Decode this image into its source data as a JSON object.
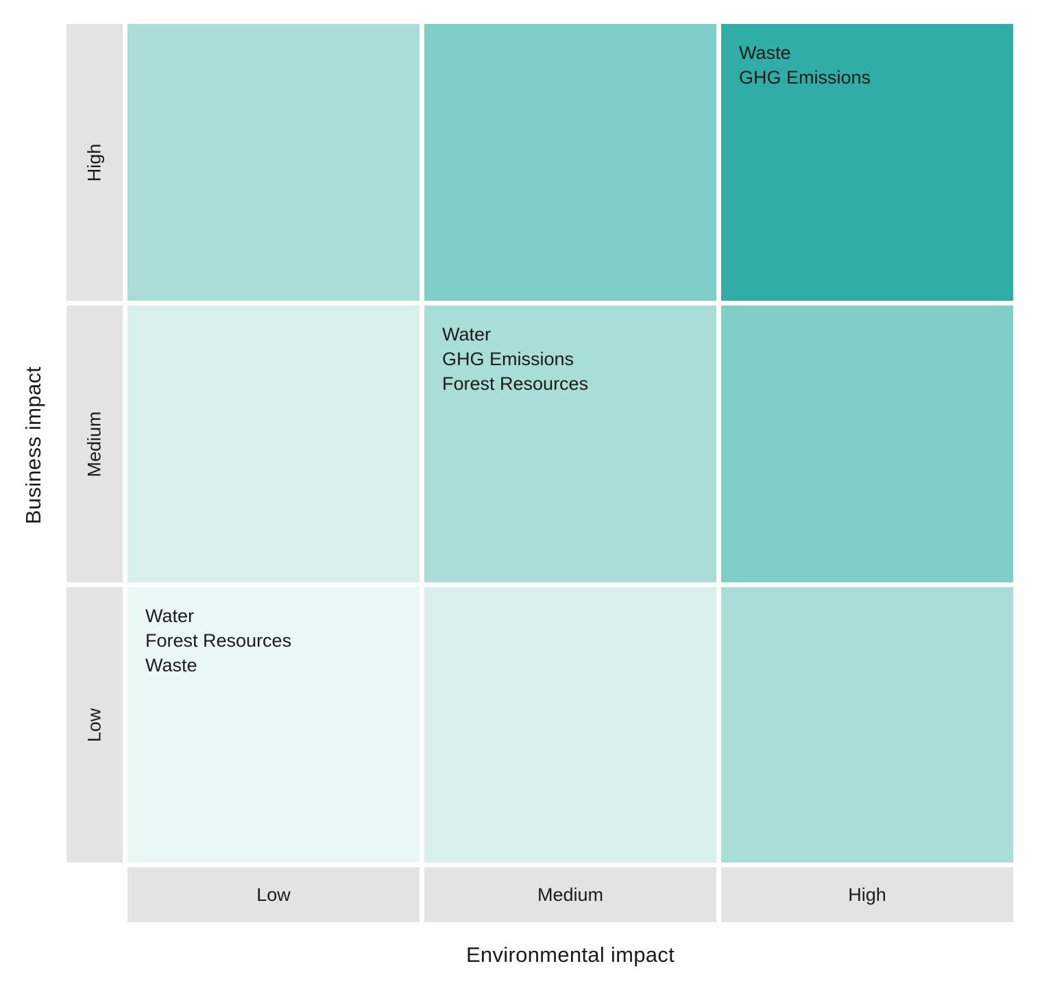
{
  "matrix": {
    "y_axis": {
      "title": "Business impact",
      "levels": [
        "High",
        "Medium",
        "Low"
      ]
    },
    "x_axis": {
      "title": "Environmental impact",
      "levels": [
        "Low",
        "Medium",
        "High"
      ]
    },
    "header_bg": "#e3e3e3",
    "text_color": "#1b1b1b",
    "legend_scale": {
      "very_low": "#ebf7f5",
      "low": "#d8efec",
      "medium": "#a9ded8",
      "high": "#7fcec7",
      "very_high": "#2fada6"
    },
    "cells": [
      {
        "row": "High",
        "col": "Low",
        "color": "#a9ded8",
        "items": []
      },
      {
        "row": "High",
        "col": "Medium",
        "color": "#7fcec7",
        "items": []
      },
      {
        "row": "High",
        "col": "High",
        "color": "#2fada6",
        "items": [
          "Waste",
          "GHG Emissions"
        ]
      },
      {
        "row": "Medium",
        "col": "Low",
        "color": "#d8efec",
        "items": []
      },
      {
        "row": "Medium",
        "col": "Medium",
        "color": "#a9ded8",
        "items": [
          "Water",
          "GHG Emissions",
          "Forest Resources"
        ]
      },
      {
        "row": "Medium",
        "col": "High",
        "color": "#7fcec7",
        "items": []
      },
      {
        "row": "Low",
        "col": "Low",
        "color": "#ebf7f5",
        "items": [
          "Water",
          "Forest Resources",
          "Waste"
        ]
      },
      {
        "row": "Low",
        "col": "Medium",
        "color": "#d8efec",
        "items": []
      },
      {
        "row": "Low",
        "col": "High",
        "color": "#a9ded8",
        "items": []
      }
    ]
  }
}
